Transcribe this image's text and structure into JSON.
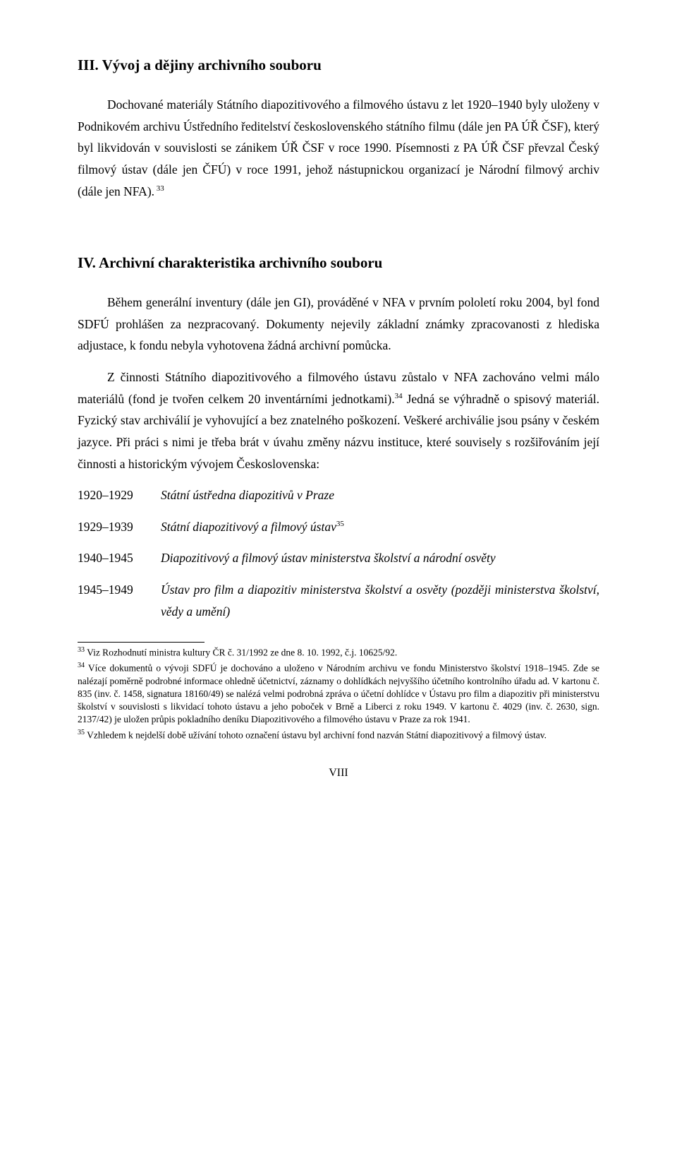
{
  "section3": {
    "heading": "III.   Vývoj a dějiny archivního souboru",
    "p1_a": "Dochované materiály Státního diapozitivového a filmového ústavu z let 1920–1940 byly uloženy v Podnikovém archivu Ústředního ředitelství československého státního filmu (dále jen PA ÚŘ ČSF), který byl likvidován v souvislosti se zánikem ÚŘ ČSF v roce 1990. Písemnosti z PA ÚŘ ČSF převzal Český filmový ústav (dále jen ČFÚ) v roce 1991, jehož nástupnickou organizací je Národní filmový archiv (dále jen NFA).",
    "p1_sup": " 33"
  },
  "section4": {
    "heading": "IV.   Archivní charakteristika archivního souboru",
    "p1": "Během generální inventury (dále jen GI), prováděné v NFA v prvním pololetí roku 2004, byl fond SDFÚ prohlášen za nezpracovaný. Dokumenty nejevily základní známky zpracovanosti z hlediska adjustace, k fondu nebyla vyhotovena žádná archivní pomůcka.",
    "p2_a": "Z činnosti Státního diapozitivového a filmového ústavu zůstalo v NFA zachováno velmi málo materiálů (fond je tvořen celkem 20 inventárními jednotkami).",
    "p2_sup": "34",
    "p2_b": " Jedná se výhradně o spisový materiál. Fyzický stav archiválií je vyhovující a bez znatelného poškození. Veškeré archiválie jsou psány v českém jazyce. Při práci s nimi je třeba brát v úvahu změny názvu instituce, které souvisely s rozšiřováním její činnosti a historickým vývojem Československa:",
    "timeline": [
      {
        "range": "1920–1929",
        "label": "Státní ústředna diapozitivů v Praze",
        "sup": ""
      },
      {
        "range": "1929–1939",
        "label": "Státní diapozitivový a filmový ústav",
        "sup": "35"
      },
      {
        "range": "1940–1945",
        "label": "Diapozitivový a filmový ústav ministerstva školství a národní osvěty",
        "sup": ""
      },
      {
        "range": "1945–1949",
        "label": "Ústav pro film a diapozitiv ministerstva školství a osvěty (později ministerstva školství, vědy a umění)",
        "sup": ""
      }
    ]
  },
  "footnotes": {
    "f33": {
      "num": "33",
      "text": " Viz Rozhodnutí ministra kultury ČR č. 31/1992 ze dne 8. 10. 1992, č.j. 10625/92."
    },
    "f34": {
      "num": "34",
      "text": " Více dokumentů o vývoji SDFÚ je dochováno a uloženo v Národním archivu ve fondu Ministerstvo školství 1918–1945. Zde se nalézají poměrně podrobné informace ohledně účetnictví, záznamy o dohlídkách nejvyššího účetního kontrolního úřadu ad. V kartonu č. 835 (inv. č. 1458, signatura 18160/49) se nalézá velmi podrobná zpráva o účetní dohlídce v Ústavu pro film a diapozitiv při ministerstvu školství v souvislosti s likvidací tohoto ústavu a jeho poboček v Brně a Liberci z roku 1949. V kartonu č. 4029 (inv. č. 2630, sign. 2137/42) je uložen průpis pokladního deníku Diapozitivového a filmového ústavu v Praze za rok 1941."
    },
    "f35": {
      "num": "35",
      "text": " Vzhledem k nejdelší době užívání tohoto označení ústavu byl archivní fond nazván Státní diapozitivový a filmový ústav."
    }
  },
  "pagenum": "VIII"
}
